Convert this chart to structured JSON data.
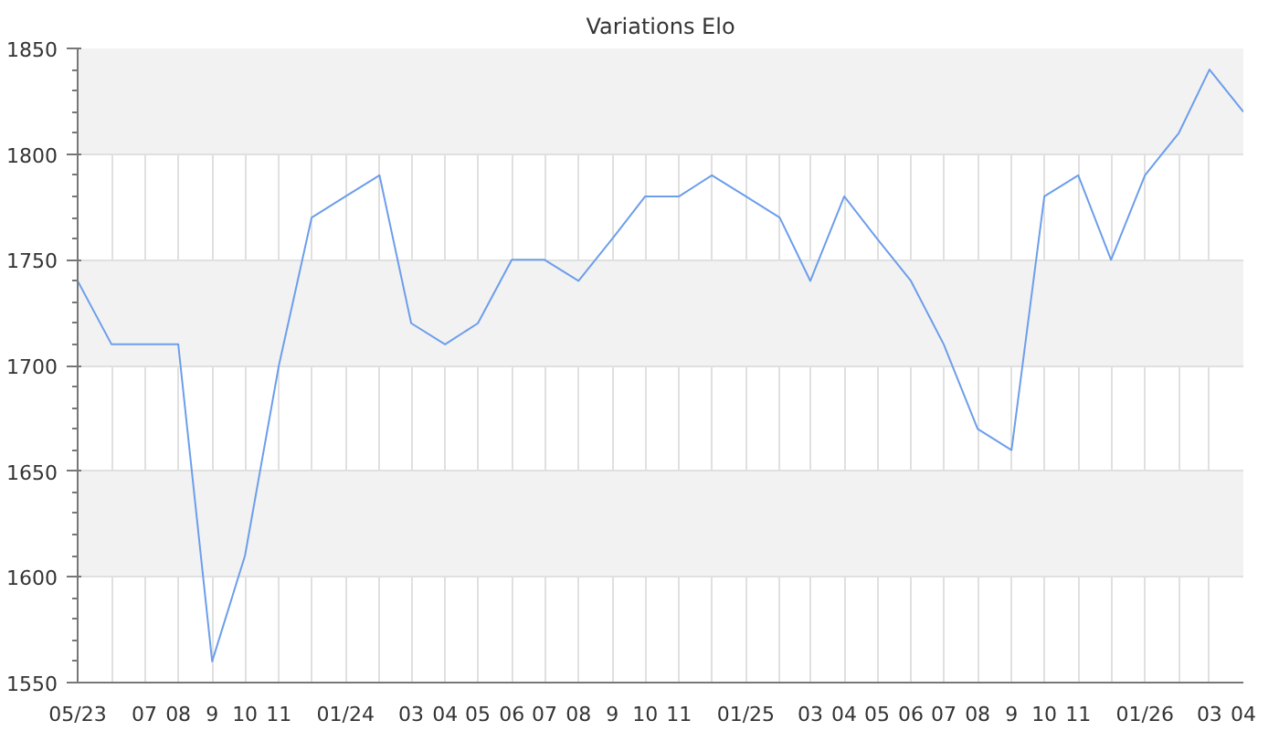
{
  "chart_data": {
    "type": "line",
    "title": "Variations Elo",
    "x": [
      "2023-05",
      "2023-06",
      "2023-07",
      "2023-08",
      "2023-09",
      "2023-10",
      "2023-11",
      "2023-12",
      "2024-01",
      "2024-02",
      "2024-03",
      "2024-04",
      "2024-05",
      "2024-06",
      "2024-07",
      "2024-08",
      "2024-09",
      "2024-10",
      "2024-11",
      "2024-12",
      "2025-01",
      "2025-02",
      "2025-03",
      "2025-04",
      "2025-05",
      "2025-06",
      "2025-07",
      "2025-08",
      "2025-09",
      "2025-10",
      "2025-11",
      "2025-12",
      "2026-01",
      "2026-02",
      "2026-03",
      "2026-04"
    ],
    "series": [
      {
        "color": "#6d9eeb",
        "values": [
          1740,
          1710,
          1710,
          1710,
          1560,
          1610,
          1700,
          1770,
          1780,
          1790,
          1720,
          1710,
          1720,
          1750,
          1750,
          1740,
          1760,
          1780,
          1780,
          1790,
          1780,
          1770,
          1740,
          1780,
          1760,
          1740,
          1710,
          1670,
          1660,
          1780,
          1790,
          1750,
          1790,
          1810,
          1840,
          1820
        ]
      }
    ],
    "xlim": [
      "2023-05",
      "2026-04"
    ],
    "xticks": [
      {
        "value": "2023-05",
        "label": "05/23"
      },
      {
        "value": "2023-06",
        "label": null
      },
      {
        "value": "2023-07",
        "label": "07"
      },
      {
        "value": "2023-08",
        "label": "08"
      },
      {
        "value": "2023-09",
        "label": "9"
      },
      {
        "value": "2023-10",
        "label": "10"
      },
      {
        "value": "2023-11",
        "label": "11"
      },
      {
        "value": "2023-12",
        "label": null
      },
      {
        "value": "2024-01",
        "label": "01/24"
      },
      {
        "value": "2024-02",
        "label": null
      },
      {
        "value": "2024-03",
        "label": "03"
      },
      {
        "value": "2024-04",
        "label": "04"
      },
      {
        "value": "2024-05",
        "label": "05"
      },
      {
        "value": "2024-06",
        "label": "06"
      },
      {
        "value": "2024-07",
        "label": "07"
      },
      {
        "value": "2024-08",
        "label": "08"
      },
      {
        "value": "2024-09",
        "label": "9"
      },
      {
        "value": "2024-10",
        "label": "10"
      },
      {
        "value": "2024-11",
        "label": "11"
      },
      {
        "value": "2024-12",
        "label": null
      },
      {
        "value": "2025-01",
        "label": "01/25"
      },
      {
        "value": "2025-02",
        "label": null
      },
      {
        "value": "2025-03",
        "label": "03"
      },
      {
        "value": "2025-04",
        "label": "04"
      },
      {
        "value": "2025-05",
        "label": "05"
      },
      {
        "value": "2025-06",
        "label": "06"
      },
      {
        "value": "2025-07",
        "label": "07"
      },
      {
        "value": "2025-08",
        "label": "08"
      },
      {
        "value": "2025-09",
        "label": "9"
      },
      {
        "value": "2025-10",
        "label": "10"
      },
      {
        "value": "2025-11",
        "label": "11"
      },
      {
        "value": "2025-12",
        "label": null
      },
      {
        "value": "2026-01",
        "label": "01/26"
      },
      {
        "value": "2026-02",
        "label": null
      },
      {
        "value": "2026-03",
        "label": "03"
      },
      {
        "value": "2026-04",
        "label": "04"
      }
    ],
    "ylim": [
      1550,
      1850
    ],
    "yticks": [
      1550,
      1600,
      1650,
      1700,
      1750,
      1800,
      1850
    ],
    "grid": true,
    "line_style": "solid"
  }
}
